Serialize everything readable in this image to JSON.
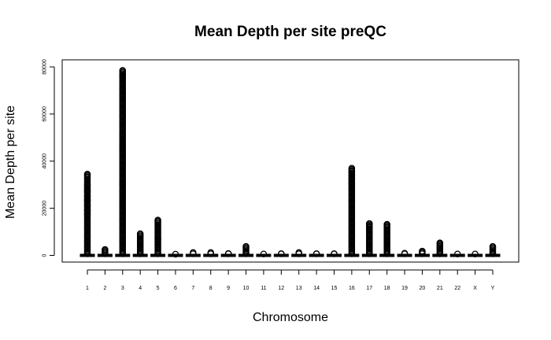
{
  "chart_data": {
    "type": "box",
    "title": "Mean Depth per site preQC",
    "xlabel": "Chromosome",
    "ylabel": "Mean Depth per site",
    "ylim": [
      -2500,
      82000
    ],
    "y_ticks": [
      0,
      20000,
      40000,
      60000,
      80000
    ],
    "categories": [
      "1",
      "2",
      "3",
      "4",
      "5",
      "6",
      "7",
      "8",
      "9",
      "10",
      "11",
      "12",
      "13",
      "14",
      "15",
      "16",
      "17",
      "18",
      "19",
      "20",
      "21",
      "22",
      "X",
      "Y"
    ],
    "series": [
      {
        "median": [
          20,
          20,
          20,
          20,
          20,
          20,
          20,
          20,
          20,
          20,
          20,
          20,
          20,
          20,
          20,
          20,
          20,
          20,
          20,
          20,
          20,
          20,
          20,
          20
        ],
        "outlier_max": [
          34500,
          2500,
          78500,
          9200,
          15000,
          500,
          1200,
          1200,
          800,
          3800,
          600,
          700,
          1200,
          700,
          700,
          37000,
          13500,
          13200,
          900,
          1800,
          5300,
          600,
          600,
          3800
        ],
        "outlier_scatter": [
          [
            29500,
            28000,
            27000,
            25000,
            23500,
            21000,
            19000,
            17500
          ],
          [],
          [
            76500,
            75500,
            71000,
            68500,
            67000,
            64500,
            61500,
            59000,
            57000,
            51000,
            49000,
            48000,
            46500,
            45500,
            44500,
            43000,
            38500,
            36000,
            31000,
            30000,
            27000,
            25500,
            23500,
            22000,
            20500,
            18500,
            17000,
            15000,
            12000,
            6000,
            1500
          ],
          [],
          [
            7000
          ],
          [],
          [],
          [],
          [],
          [],
          [],
          [],
          [],
          [],
          [],
          [
            35500,
            34000,
            32000,
            30500,
            28500
          ],
          [
            12000
          ],
          [],
          [],
          [],
          [],
          [],
          [],
          []
        ]
      }
    ],
    "grid": false
  }
}
